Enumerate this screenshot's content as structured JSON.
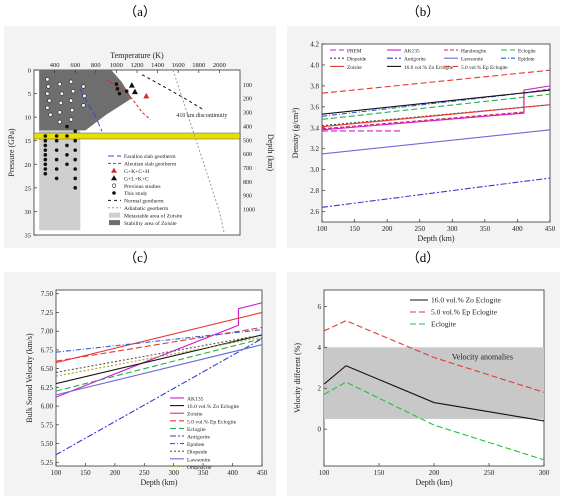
{
  "panel_labels": [
    "（a）",
    "（b）",
    "（c）",
    "（d）"
  ],
  "chart_data": [
    {
      "panel": "a",
      "type": "scatter",
      "title": "",
      "xlabel": "Temperature (K)",
      "ylabel": "Pressure (GPa)",
      "ylabel2": "Depth (km)",
      "xlim": [
        200,
        2200
      ],
      "ylim": [
        35,
        0
      ],
      "x_ticks": [
        400,
        600,
        800,
        1000,
        1200,
        1400,
        1600,
        1800,
        2000
      ],
      "y_ticks": [
        0,
        5,
        10,
        15,
        20,
        25,
        30,
        35
      ],
      "y2_ticks": [
        100,
        200,
        300,
        400,
        500,
        600,
        700,
        800,
        900,
        1000
      ],
      "annotation": "410 km discontinuity",
      "discontinuity_pressure": 14,
      "zoisite_stability_region": [
        [
          250,
          0
        ],
        [
          950,
          0
        ],
        [
          1050,
          2.5
        ],
        [
          1150,
          6
        ],
        [
          900,
          9.5
        ],
        [
          700,
          12.8
        ],
        [
          250,
          12.8
        ]
      ],
      "zoisite_metastable_region": [
        [
          250,
          0
        ],
        [
          250,
          34
        ],
        [
          650,
          34
        ],
        [
          650,
          12.8
        ],
        [
          250,
          12.8
        ]
      ],
      "this_study": [
        [
          310,
          14
        ],
        [
          310,
          15
        ],
        [
          310,
          16
        ],
        [
          310,
          17
        ],
        [
          310,
          18
        ],
        [
          310,
          19
        ],
        [
          310,
          20
        ],
        [
          310,
          21
        ],
        [
          310,
          22
        ],
        [
          420,
          14
        ],
        [
          420,
          15
        ],
        [
          420,
          17
        ],
        [
          420,
          19
        ],
        [
          420,
          21
        ],
        [
          420,
          23
        ],
        [
          520,
          12
        ],
        [
          520,
          14
        ],
        [
          520,
          16
        ],
        [
          520,
          18
        ],
        [
          520,
          20
        ],
        [
          600,
          13
        ],
        [
          600,
          15
        ],
        [
          600,
          17
        ],
        [
          600,
          19
        ],
        [
          600,
          21
        ],
        [
          600,
          23
        ],
        [
          600,
          25
        ],
        [
          1000,
          3
        ],
        [
          1010,
          4
        ],
        [
          1030,
          5
        ],
        [
          1100,
          4.5
        ]
      ],
      "previous_studies": [
        [
          330,
          2
        ],
        [
          340,
          3.5
        ],
        [
          330,
          5
        ],
        [
          350,
          6.5
        ],
        [
          330,
          8
        ],
        [
          360,
          9.5
        ],
        [
          450,
          3
        ],
        [
          470,
          5
        ],
        [
          460,
          7
        ],
        [
          450,
          9
        ],
        [
          450,
          11
        ],
        [
          560,
          2.5
        ],
        [
          580,
          4.5
        ],
        [
          560,
          6.5
        ],
        [
          570,
          8.5
        ],
        [
          560,
          10.5
        ],
        [
          680,
          3.5
        ],
        [
          690,
          5.5
        ],
        [
          680,
          7.5
        ]
      ],
      "triangles_red": [
        [
          1290,
          5.5
        ]
      ],
      "triangles_black": [
        [
          1150,
          3.2
        ],
        [
          1180,
          4.6
        ]
      ],
      "series": [
        {
          "name": "Farallon slab geotherm",
          "color": "#2a4fd4",
          "dash": "6 3",
          "points": [
            [
              650,
              4
            ],
            [
              720,
              7
            ],
            [
              800,
              10
            ],
            [
              860,
              13
            ]
          ]
        },
        {
          "name": "Aleutian slab geotherm",
          "color": "#d32a2a",
          "dash": "3 2",
          "points": [
            [
              900,
              2
            ],
            [
              1050,
              4
            ],
            [
              1150,
              6
            ],
            [
              1250,
              9
            ],
            [
              1330,
              10.5
            ]
          ]
        },
        {
          "name": "Normal geotherm",
          "color": "#111111",
          "dash": "3 3",
          "points": [
            [
              1250,
              1
            ],
            [
              1500,
              4
            ],
            [
              1700,
              6.5
            ],
            [
              1850,
              8.5
            ]
          ]
        },
        {
          "name": "Adiabatic geotherm",
          "color": "#999999",
          "dash": "2 2",
          "points": [
            [
              1550,
              0
            ],
            [
              1700,
              10
            ],
            [
              1850,
              20
            ],
            [
              2000,
              30
            ],
            [
              2050,
              35
            ]
          ]
        }
      ],
      "legend": [
        "Farallon slab geotherm",
        "Aleutian slab geotherm",
        "G+K+C+H",
        "G+L+K+C",
        "Previous studies",
        "This study",
        "Normal geotherm",
        "Adiabatic geotherm",
        "Metastable area of Zoisite",
        "Stability area of Zoisite"
      ]
    },
    {
      "panel": "b",
      "type": "line",
      "title": "",
      "xlabel": "Depth (km)",
      "ylabel": "Density (g/cm³)",
      "xlim": [
        100,
        450
      ],
      "ylim": [
        2.5,
        4.2
      ],
      "x_ticks": [
        100,
        150,
        200,
        250,
        300,
        350,
        400,
        450
      ],
      "y_ticks": [
        2.6,
        2.8,
        3.0,
        3.2,
        3.4,
        3.6,
        3.8,
        4.0,
        4.2
      ],
      "series": [
        {
          "name": "PREM",
          "color": "#d21ad2",
          "dash": "6 3",
          "x": [
            100,
            220
          ],
          "y": [
            3.37,
            3.37
          ]
        },
        {
          "name": "AK135",
          "color": "#d21ad2",
          "dash": "",
          "x": [
            100,
            410,
            410,
            450
          ],
          "y": [
            3.38,
            3.54,
            3.76,
            3.8
          ]
        },
        {
          "name": "Harzburgite",
          "color": "#d81b60",
          "dash": "4 2",
          "x": [
            100,
            410,
            410,
            450
          ],
          "y": [
            3.39,
            3.55,
            3.73,
            3.77
          ]
        },
        {
          "name": "Eclogite",
          "color": "#22b04a",
          "dash": "6 3",
          "x": [
            100,
            450
          ],
          "y": [
            3.48,
            3.72
          ]
        },
        {
          "name": "Diopside",
          "color": "#444444",
          "dash": "2 2",
          "x": [
            100,
            450
          ],
          "y": [
            3.42,
            3.62
          ]
        },
        {
          "name": "Antigorite",
          "color": "#3a3ad4",
          "dash": "6 2 2 2",
          "x": [
            100,
            450
          ],
          "y": [
            2.64,
            2.92
          ]
        },
        {
          "name": "Lawsonite",
          "color": "#6b6bd9",
          "dash": "",
          "x": [
            100,
            450
          ],
          "y": [
            3.15,
            3.38
          ]
        },
        {
          "name": "Epidote",
          "color": "#2b5fd9",
          "dash": "5 2 1 2",
          "x": [
            100,
            450
          ],
          "y": [
            3.51,
            3.76
          ]
        },
        {
          "name": "Zoisite",
          "color": "#e53935",
          "dash": "",
          "x": [
            100,
            450
          ],
          "y": [
            3.41,
            3.62
          ]
        },
        {
          "name": "16.0 vol.% Zo Eclogite",
          "color": "#111111",
          "dash": "",
          "x": [
            100,
            450
          ],
          "y": [
            3.53,
            3.76
          ]
        },
        {
          "name": "5.0 vol.% Ep Eclogite",
          "color": "#e53935",
          "dash": "6 3",
          "x": [
            100,
            450
          ],
          "y": [
            3.73,
            3.95
          ]
        }
      ]
    },
    {
      "panel": "c",
      "type": "line",
      "title": "",
      "xlabel": "Depth (km)",
      "ylabel": "Bulk Sound Velocity (km/s)",
      "xlim": [
        100,
        450
      ],
      "ylim": [
        5.2,
        7.55
      ],
      "x_ticks": [
        100,
        150,
        200,
        250,
        300,
        350,
        400,
        450
      ],
      "y_ticks": [
        5.25,
        5.5,
        5.75,
        6.0,
        6.25,
        6.5,
        6.75,
        7.0,
        7.25,
        7.5
      ],
      "series": [
        {
          "name": "AK135",
          "color": "#d21ad2",
          "dash": "",
          "x": [
            100,
            410,
            410,
            450
          ],
          "y": [
            6.12,
            7.08,
            7.3,
            7.38
          ]
        },
        {
          "name": "16.0 vol.% Zo Eclogite",
          "color": "#111111",
          "dash": "",
          "x": [
            100,
            450
          ],
          "y": [
            6.3,
            6.95
          ]
        },
        {
          "name": "Zoisite",
          "color": "#e53935",
          "dash": "",
          "x": [
            100,
            450
          ],
          "y": [
            6.58,
            7.25
          ]
        },
        {
          "name": "5.0 vol.% Ep Eclogite",
          "color": "#e53935",
          "dash": "6 3",
          "x": [
            100,
            450
          ],
          "y": [
            6.6,
            7.05
          ]
        },
        {
          "name": "Eclogite",
          "color": "#22b04a",
          "dash": "6 3",
          "x": [
            100,
            450
          ],
          "y": [
            6.2,
            6.9
          ]
        },
        {
          "name": "Antigorite",
          "color": "#3a3ad4",
          "dash": "6 2 2 2",
          "x": [
            100,
            450
          ],
          "y": [
            5.35,
            6.9
          ]
        },
        {
          "name": "Epidote",
          "color": "#2b5fd9",
          "dash": "5 2 1 2",
          "x": [
            100,
            450
          ],
          "y": [
            6.72,
            7.02
          ]
        },
        {
          "name": "Diopside",
          "color": "#555555",
          "dash": "2 2",
          "x": [
            100,
            450
          ],
          "y": [
            6.45,
            6.95
          ]
        },
        {
          "name": "Lawsonite",
          "color": "#6b6bd9",
          "dash": "",
          "x": [
            100,
            450
          ],
          "y": [
            6.15,
            6.82
          ]
        },
        {
          "name": "Omphacite",
          "color": "#b0a020",
          "dash": "2 2",
          "x": [
            100,
            450
          ],
          "y": [
            6.4,
            6.92
          ]
        }
      ]
    },
    {
      "panel": "d",
      "type": "line",
      "title": "",
      "xlabel": "Depth (km)",
      "ylabel": "Velocity different (%)",
      "xlim": [
        100,
        300
      ],
      "ylim": [
        -1.8,
        6.8
      ],
      "x_ticks": [
        100,
        150,
        200,
        250,
        300
      ],
      "y_ticks": [
        0,
        2,
        4,
        6
      ],
      "band": {
        "label": "Velocity anomalies",
        "y0": 0.5,
        "y1": 4.0
      },
      "series": [
        {
          "name": "16.0 vol.% Zo Eclogite",
          "color": "#111111",
          "dash": "",
          "x": [
            100,
            120,
            200,
            300
          ],
          "y": [
            2.2,
            3.1,
            1.3,
            0.4
          ]
        },
        {
          "name": "5.0 vol.% Ep Eclogite",
          "color": "#e53935",
          "dash": "6 3",
          "x": [
            100,
            120,
            200,
            300
          ],
          "y": [
            4.8,
            5.3,
            3.5,
            1.8
          ]
        },
        {
          "name": "Eclogite",
          "color": "#22c040",
          "dash": "6 3",
          "x": [
            100,
            120,
            200,
            300
          ],
          "y": [
            1.7,
            2.3,
            0.2,
            -1.5
          ]
        }
      ]
    }
  ]
}
